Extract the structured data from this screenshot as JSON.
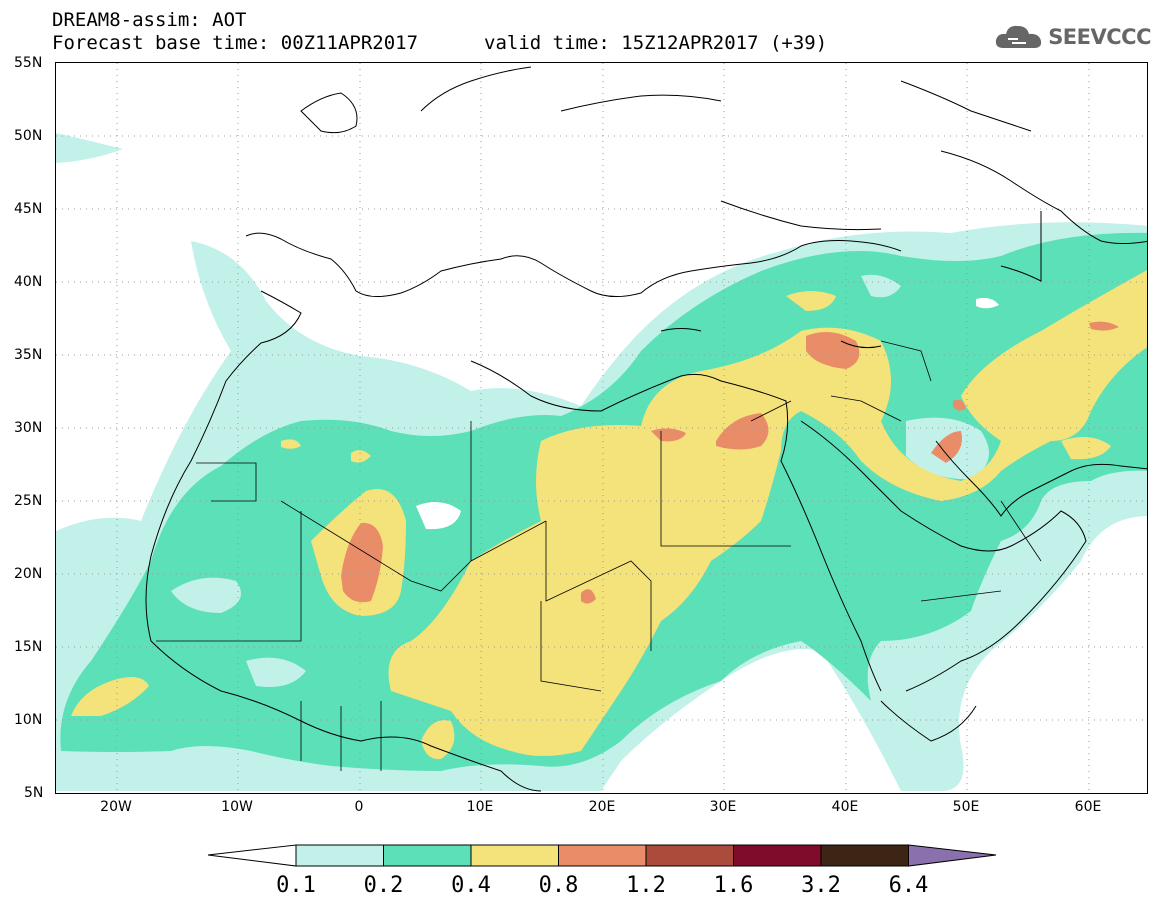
{
  "header": {
    "line1": "DREAM8-assim: AOT",
    "line2": "Forecast base time: 00Z11APR2017",
    "line3": "valid time: 15Z12APR2017 (+39)"
  },
  "logo": {
    "text": "SEEVCCC",
    "icon": "cloud-icon",
    "color": "#666666"
  },
  "axes": {
    "lat_labels": [
      "55N",
      "50N",
      "45N",
      "40N",
      "35N",
      "30N",
      "25N",
      "20N",
      "15N",
      "10N",
      "5N"
    ],
    "lon_labels": [
      "20W",
      "10W",
      "0",
      "10E",
      "20E",
      "30E",
      "40E",
      "50E",
      "60E"
    ],
    "lon_range": [
      -25,
      65
    ],
    "lat_range": [
      5,
      55
    ],
    "grid": "dotted"
  },
  "colorbar": {
    "ticks": [
      "0.1",
      "0.2",
      "0.4",
      "0.8",
      "1.2",
      "1.6",
      "3.2",
      "6.4"
    ],
    "colors": [
      "#ffffff",
      "#c2f1ea",
      "#5ce0b8",
      "#f4e27a",
      "#e98d69",
      "#aa4b3b",
      "#7f0c2a",
      "#3c2515",
      "#8a70ad"
    ]
  }
}
